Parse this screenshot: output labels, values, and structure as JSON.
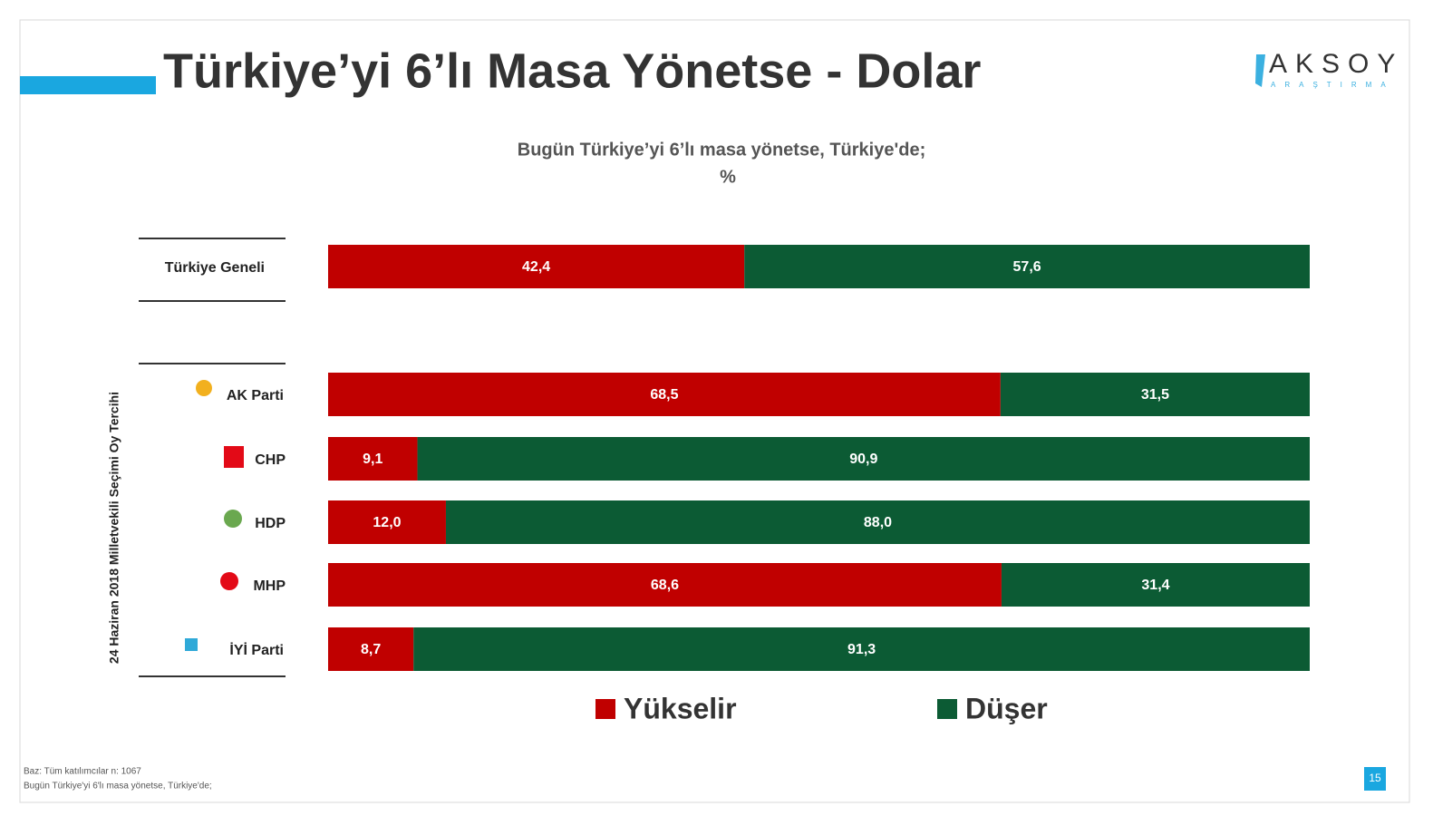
{
  "chart_data": {
    "type": "stacked-bar-horizontal",
    "title": "Türkiye’yi 6’lı Masa Yönetse - Dolar",
    "subtitle": "Bugün Türkiye’yi 6’lı masa yönetse, Türkiye'de;",
    "unit_label": "%",
    "group_label": "24 Haziran 2018 Milletvekili Seçimi Oy Tercihi",
    "logo": "AKSOY",
    "logo_subtitle": "ARAŞTIRMA",
    "notes": [
      "Baz: Tüm katılımcılar n: 1067",
      "Bugün Türkiye'yi 6'lı masa yönetse, Türkiye'de;"
    ],
    "page_number": "15",
    "categories": [
      "Türkiye Geneli",
      "AK Parti",
      "CHP",
      "HDP",
      "MHP",
      "İYİ Parti"
    ],
    "xlim": [
      0,
      100
    ],
    "series": [
      {
        "name": "Yükselir",
        "color": "#c00000",
        "values": [
          42.4,
          68.5,
          9.1,
          12.0,
          68.6,
          8.7
        ],
        "value_labels": [
          "42,4",
          "68,5",
          "9,1",
          "12,0",
          "68,6",
          "8,7"
        ]
      },
      {
        "name": "Düşer",
        "color": "#0c5b34",
        "values": [
          57.6,
          31.5,
          90.9,
          88.0,
          31.4,
          91.3
        ],
        "value_labels": [
          "57,6",
          "31,5",
          "90,9",
          "88,0",
          "31,4",
          "91,3"
        ]
      }
    ]
  }
}
